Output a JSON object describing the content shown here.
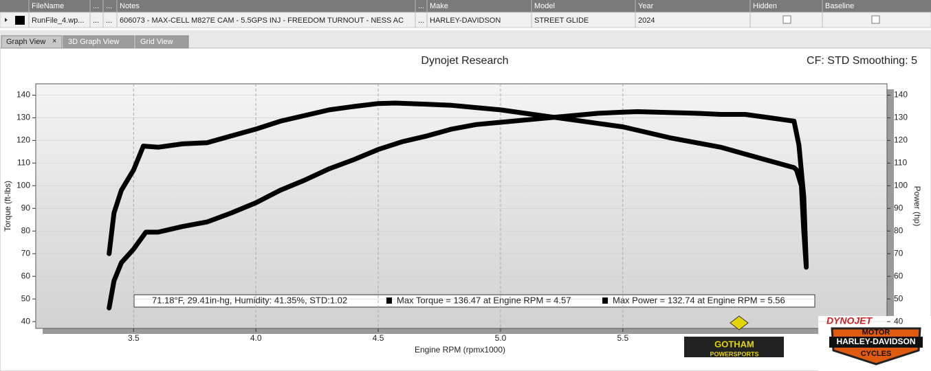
{
  "table": {
    "columns": [
      "FileName",
      "...",
      "...",
      "Notes",
      "...",
      "Make",
      "Model",
      "Year",
      "Hidden",
      "Baseline"
    ],
    "rows": [
      [
        "RunFile_4.wp...",
        "...",
        "...",
        "606073 - MAX-CELL M827E CAM - 5.5GPS INJ - FREEDOM TURNOUT - NESS AC",
        "...",
        "HARLEY-DAVIDSON",
        "STREET GLIDE",
        "2024"
      ]
    ]
  },
  "tabs": [
    "Graph View",
    "3D Graph View",
    "Grid View"
  ],
  "chart_data": {
    "type": "line",
    "title": "Dynojet Research",
    "subtitle": "CF: STD Smoothing: 5",
    "x_label": "Engine RPM (rpmx1000)",
    "y_label": "Torque (ft-lbs)",
    "y2_label": "Power (hp)",
    "xlim": [
      3.1,
      6.58
    ],
    "ylim": [
      37,
      145
    ],
    "y2lim": [
      37,
      145
    ],
    "xticks": [
      3.5,
      {
        "value": 4,
        "label": "4.0"
      },
      4.5,
      {
        "value": 5,
        "label": "5.0"
      },
      5.5
    ],
    "yticks": [
      40,
      50,
      60,
      70,
      80,
      90,
      100,
      110,
      120,
      130,
      140
    ],
    "y2ticks": [
      40,
      50,
      60,
      70,
      80,
      90,
      100,
      110,
      120,
      130,
      140
    ],
    "grid": true,
    "series": [
      {
        "name": "Max Torque = 136.47 at Engine RPM = 4.57",
        "color": "#000000",
        "x": [
          3.4,
          3.42,
          3.45,
          3.5,
          3.54,
          3.6,
          3.7,
          3.8,
          3.9,
          4.0,
          4.1,
          4.2,
          4.3,
          4.4,
          4.5,
          4.57,
          4.7,
          4.8,
          4.9,
          5.0,
          5.1,
          5.2,
          5.3,
          5.4,
          5.5,
          5.6,
          5.7,
          5.8,
          5.9,
          6.0,
          6.1,
          6.2,
          6.21,
          6.23,
          6.24,
          6.25
        ],
        "values": [
          70,
          88,
          98,
          107,
          117.5,
          117,
          118.5,
          119,
          122,
          125,
          128.5,
          131,
          133.5,
          135,
          136.3,
          136.5,
          136,
          135.5,
          134.5,
          133.5,
          132,
          130.5,
          129,
          127.5,
          126,
          123.5,
          121,
          119,
          117,
          114,
          111,
          108,
          107,
          100,
          80,
          64
        ]
      },
      {
        "name": "Max Power = 132.74 at Engine RPM = 5.56",
        "color": "#000000",
        "axis": "y2",
        "x": [
          3.4,
          3.42,
          3.45,
          3.5,
          3.55,
          3.6,
          3.7,
          3.8,
          3.9,
          4.0,
          4.1,
          4.2,
          4.3,
          4.4,
          4.5,
          4.6,
          4.7,
          4.8,
          4.9,
          5.0,
          5.1,
          5.2,
          5.3,
          5.4,
          5.5,
          5.56,
          5.7,
          5.8,
          5.9,
          6.0,
          6.1,
          6.2,
          6.22,
          6.24,
          6.25
        ],
        "values": [
          46,
          58,
          66,
          72,
          79.5,
          79.5,
          82,
          84,
          88,
          92.5,
          98,
          102.5,
          107.5,
          111.5,
          116,
          119.5,
          122,
          125,
          127,
          128,
          129,
          130,
          131,
          132,
          132.5,
          132.7,
          132.3,
          132,
          131.5,
          131.5,
          130,
          128.5,
          118,
          95,
          65
        ]
      }
    ],
    "annotation": "71.18°F, 29.41in-hg, Humidity: 41.35%, STD:1.02"
  },
  "logos": {
    "gotham": [
      "GOTHAM",
      "POWERSPORTS"
    ],
    "dynojet": "DYNOJET",
    "harley": [
      "MOTOR",
      "HARLEY-DAVIDSON",
      "CYCLES"
    ]
  }
}
